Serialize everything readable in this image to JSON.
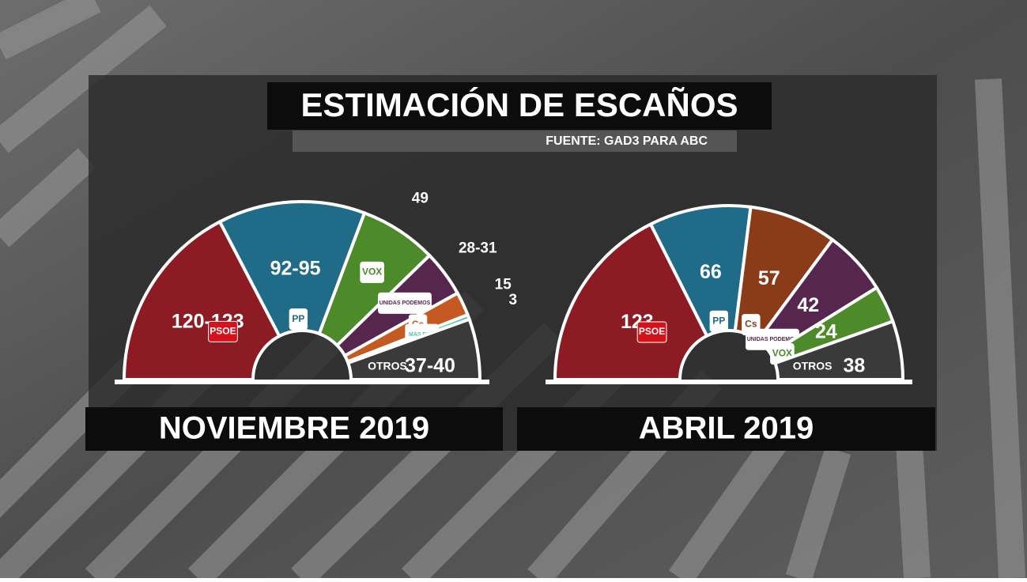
{
  "header": {
    "title": "ESTIMACIÓN DE ESCAÑOS",
    "source": "FUENTE: GAD3 PARA ABC"
  },
  "chart_data": [
    {
      "type": "parliament",
      "title": "NOVIEMBRE 2019",
      "categories": [
        "PSOE",
        "PP",
        "VOX",
        "UNIDAS PODEMOS",
        "Cs",
        "MÁS PAÍS",
        "OTROS"
      ],
      "values": [
        [
          120,
          123
        ],
        [
          92,
          95
        ],
        49,
        [
          28,
          31
        ],
        15,
        3,
        [
          37,
          40
        ]
      ],
      "value_labels": [
        "120-123",
        "92-95",
        "49",
        "28-31",
        "15",
        "3",
        "37-40"
      ],
      "colors": [
        "#8c1b24",
        "#1f6b88",
        "#4d8a2a",
        "#56264f",
        "#c45a22",
        "#4fc4a4",
        "#3a3a3a"
      ]
    },
    {
      "type": "parliament",
      "title": "ABRIL 2019",
      "categories": [
        "PSOE",
        "PP",
        "Cs",
        "UNIDAS PODEMOS",
        "VOX",
        "OTROS"
      ],
      "values": [
        123,
        66,
        57,
        42,
        24,
        38
      ],
      "colors": [
        "#8c1b24",
        "#1f6b88",
        "#8a3c18",
        "#56264f",
        "#4d8a2a",
        "#3a3a3a"
      ]
    }
  ]
}
